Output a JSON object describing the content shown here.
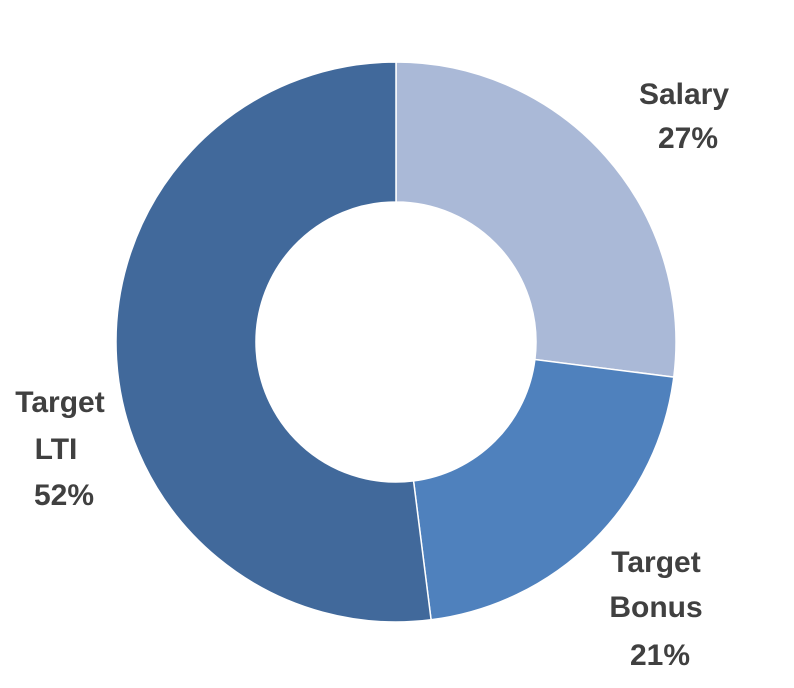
{
  "chart_data": {
    "type": "pie",
    "donut": true,
    "title": "",
    "slices": [
      {
        "label_lines": [
          "Salary"
        ],
        "pct_label": "27%",
        "value": 27,
        "color": "#aab9d7"
      },
      {
        "label_lines": [
          "Target",
          "Bonus"
        ],
        "pct_label": "21%",
        "value": 21,
        "color": "#4f81bd"
      },
      {
        "label_lines": [
          "Target",
          "LTI"
        ],
        "pct_label": "52%",
        "value": 52,
        "color": "#41699b"
      }
    ]
  }
}
